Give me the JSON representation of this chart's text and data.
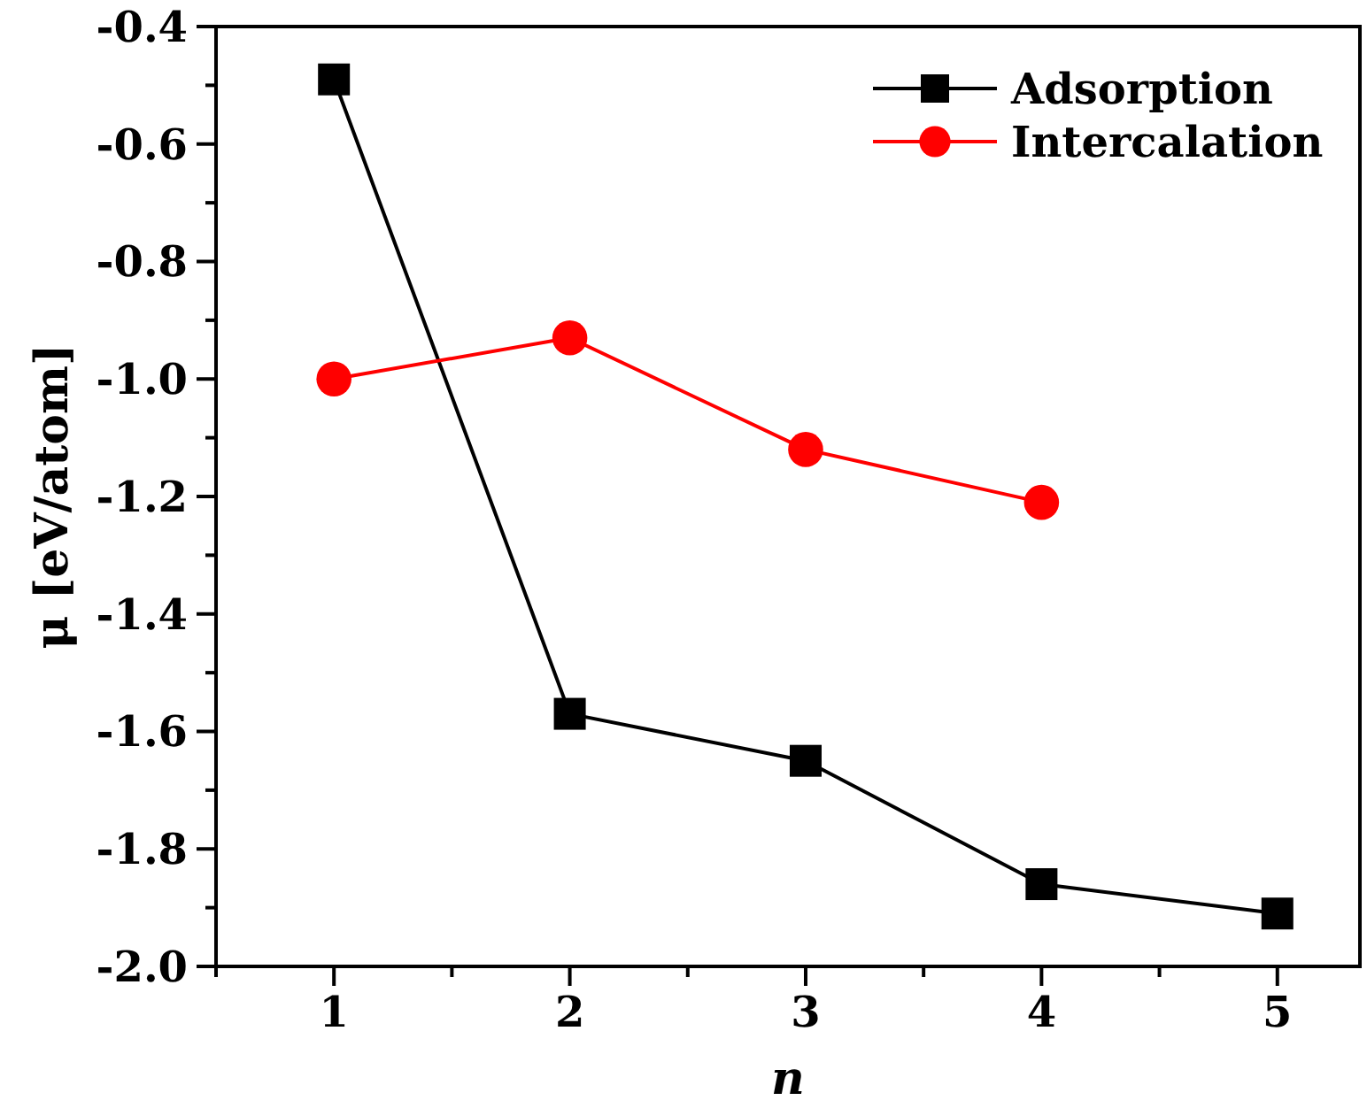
{
  "chart_data": {
    "type": "line",
    "xlabel": "n",
    "ylabel": "μ [eV/atom]",
    "x": [
      1,
      2,
      3,
      4,
      5
    ],
    "series": [
      {
        "name": "Adsorption",
        "color": "#000000",
        "marker": "square",
        "values": [
          -0.49,
          -1.57,
          -1.65,
          -1.86,
          -1.91
        ]
      },
      {
        "name": "Intercalation",
        "color": "#ff0000",
        "marker": "circle",
        "values": [
          -1.0,
          -0.93,
          -1.12,
          -1.21,
          null
        ]
      }
    ],
    "xlim": [
      0.5,
      5.35
    ],
    "xticks": [
      {
        "value": 0.5,
        "label": null
      },
      1,
      {
        "value": 1.5,
        "label": null
      },
      2,
      {
        "value": 2.5,
        "label": null
      },
      3,
      {
        "value": 3.5,
        "label": null
      },
      4,
      {
        "value": 4.5,
        "label": null
      },
      5
    ],
    "ylim": [
      -2.0,
      -0.4
    ],
    "yticks": [
      {
        "value": -2.0,
        "label": "-2.0"
      },
      {
        "value": -1.9,
        "label": null
      },
      -1.8,
      {
        "value": -1.7,
        "label": null
      },
      -1.6,
      {
        "value": -1.5,
        "label": null
      },
      -1.4,
      {
        "value": -1.3,
        "label": null
      },
      -1.2,
      {
        "value": -1.1,
        "label": null
      },
      {
        "value": -1.0,
        "label": "-1.0"
      },
      {
        "value": -0.9,
        "label": null
      },
      -0.8,
      {
        "value": -0.7,
        "label": null
      },
      -0.6,
      {
        "value": -0.5,
        "label": null
      },
      -0.4
    ],
    "grid": false,
    "legend": "top right",
    "line_style": "solid"
  }
}
